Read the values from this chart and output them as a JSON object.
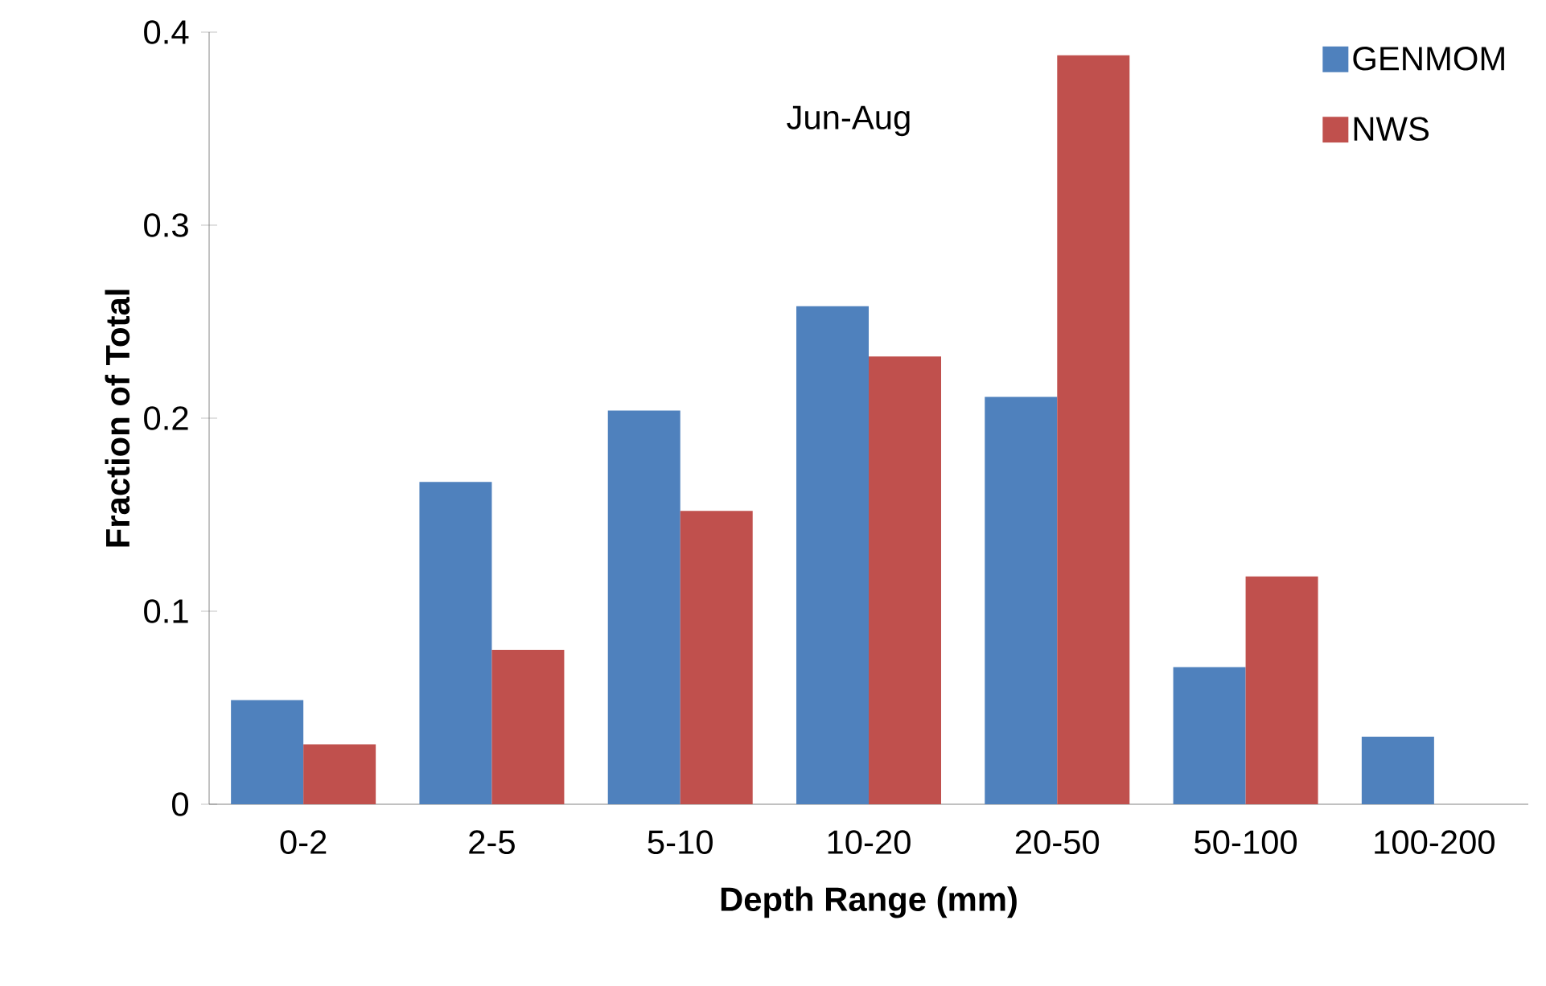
{
  "chart_data": {
    "type": "bar",
    "xlabel": "Depth Range (mm)",
    "ylabel": "Fraction of Total",
    "annotations": [
      "Jun-Aug"
    ],
    "categories": [
      "0-2",
      "2-5",
      "5-10",
      "10-20",
      "20-50",
      "50-100",
      "100-200"
    ],
    "series": [
      {
        "name": "GENMOM",
        "color": "#4f81bd",
        "values": [
          0.054,
          0.167,
          0.204,
          0.258,
          0.211,
          0.071,
          0.035
        ]
      },
      {
        "name": "NWS",
        "color": "#c0504d",
        "values": [
          0.031,
          0.08,
          0.152,
          0.232,
          0.388,
          0.118,
          null
        ]
      }
    ],
    "ylim": [
      0,
      0.4
    ],
    "yticks": [
      0,
      0.1,
      0.2,
      0.3,
      0.4
    ],
    "legend": "top right"
  }
}
